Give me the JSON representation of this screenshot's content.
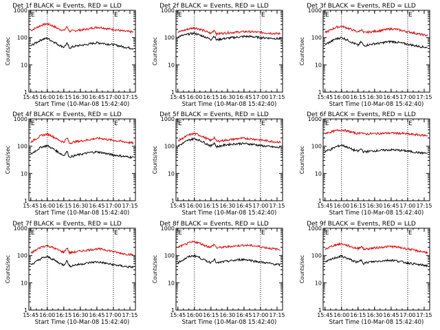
{
  "colors": {
    "events": "#000000",
    "lld": "#e00000",
    "axis": "#000000",
    "background": "#ffffff"
  },
  "common": {
    "ylabel": "Counts/sec",
    "xlabel": "Start Time (10-Mar-08 15:42:40)",
    "x_ticks": [
      "15:45",
      "16:00",
      "16:15",
      "16:30",
      "16:45",
      "17:00",
      "17:15"
    ],
    "y_ticks": [
      "1",
      "10",
      "100",
      "1000"
    ],
    "marker_label": "E",
    "xlim_minutes": [
      -1.7,
      95
    ],
    "ylim": [
      1,
      1000
    ],
    "yscale": "log",
    "vlines_minutes": [
      15,
      75
    ]
  },
  "chart_data": [
    {
      "type": "line",
      "title": "Det 1f BLACK = Events, RED = LLD",
      "x": [
        "15:45",
        "15:50",
        "15:55",
        "16:00",
        "16:03",
        "16:10",
        "16:15",
        "16:18",
        "16:20",
        "16:25",
        "16:30",
        "16:35",
        "16:40",
        "16:45",
        "16:50",
        "16:55",
        "17:00",
        "17:05",
        "17:10",
        "17:15",
        "17:18"
      ],
      "series": [
        {
          "name": "LLD",
          "color": "#e00000",
          "values": [
            180,
            230,
            290,
            320,
            290,
            210,
            180,
            250,
            170,
            180,
            190,
            200,
            220,
            240,
            230,
            210,
            200,
            185,
            170,
            165,
            160
          ]
        },
        {
          "name": "Events",
          "color": "#000000",
          "values": [
            50,
            65,
            85,
            95,
            80,
            55,
            45,
            60,
            42,
            48,
            52,
            55,
            60,
            65,
            62,
            58,
            55,
            50,
            45,
            42,
            40
          ]
        }
      ]
    },
    {
      "type": "line",
      "title": "Det 2f BLACK = Events, RED = LLD",
      "x": [
        "15:45",
        "15:50",
        "15:55",
        "16:00",
        "16:03",
        "16:10",
        "16:15",
        "16:18",
        "16:20",
        "16:25",
        "16:30",
        "16:35",
        "16:40",
        "16:45",
        "16:50",
        "16:55",
        "17:00",
        "17:05",
        "17:10",
        "17:15",
        "17:18"
      ],
      "series": [
        {
          "name": "LLD",
          "color": "#e00000",
          "values": [
            160,
            180,
            210,
            230,
            215,
            170,
            140,
            190,
            135,
            145,
            150,
            155,
            160,
            165,
            165,
            160,
            155,
            150,
            145,
            140,
            140
          ]
        },
        {
          "name": "Events",
          "color": "#000000",
          "values": [
            110,
            120,
            135,
            145,
            130,
            105,
            85,
            115,
            82,
            90,
            95,
            100,
            105,
            110,
            110,
            105,
            100,
            98,
            95,
            92,
            90
          ]
        }
      ]
    },
    {
      "type": "line",
      "title": "Det 3f BLACK = Events, RED = LLD",
      "x": [
        "15:45",
        "15:50",
        "15:55",
        "16:00",
        "16:03",
        "16:10",
        "16:15",
        "16:18",
        "16:20",
        "16:25",
        "16:30",
        "16:35",
        "16:40",
        "16:45",
        "16:50",
        "16:55",
        "17:00",
        "17:05",
        "17:10",
        "17:15",
        "17:18"
      ],
      "series": [
        {
          "name": "LLD",
          "color": "#e00000",
          "values": [
            150,
            190,
            240,
            260,
            240,
            190,
            160,
            200,
            150,
            160,
            170,
            180,
            195,
            210,
            200,
            180,
            165,
            150,
            135,
            125,
            120
          ]
        },
        {
          "name": "Events",
          "color": "#000000",
          "values": [
            55,
            70,
            90,
            100,
            90,
            65,
            52,
            70,
            50,
            55,
            60,
            62,
            68,
            72,
            68,
            62,
            58,
            52,
            48,
            45,
            43
          ]
        }
      ]
    },
    {
      "type": "line",
      "title": "Det 4f BLACK = Events, RED = LLD",
      "x": [
        "15:45",
        "15:50",
        "15:55",
        "16:00",
        "16:03",
        "16:10",
        "16:15",
        "16:18",
        "16:20",
        "16:25",
        "16:30",
        "16:35",
        "16:40",
        "16:45",
        "16:50",
        "16:55",
        "17:00",
        "17:05",
        "17:10",
        "17:15",
        "17:18"
      ],
      "series": [
        {
          "name": "LLD",
          "color": "#e00000",
          "values": [
            140,
            190,
            250,
            280,
            250,
            170,
            140,
            200,
            130,
            145,
            155,
            165,
            180,
            195,
            190,
            175,
            165,
            155,
            145,
            135,
            130
          ]
        },
        {
          "name": "Events",
          "color": "#000000",
          "values": [
            50,
            70,
            95,
            105,
            90,
            60,
            45,
            65,
            40,
            45,
            50,
            55,
            60,
            62,
            58,
            52,
            48,
            45,
            42,
            40,
            40
          ]
        }
      ]
    },
    {
      "type": "line",
      "title": "Det 5f BLACK = Events, RED = LLD",
      "x": [
        "15:45",
        "15:50",
        "15:55",
        "16:00",
        "16:03",
        "16:10",
        "16:15",
        "16:18",
        "16:20",
        "16:25",
        "16:30",
        "16:35",
        "16:40",
        "16:45",
        "16:50",
        "16:55",
        "17:00",
        "17:05",
        "17:10",
        "17:15",
        "17:18"
      ],
      "series": [
        {
          "name": "LLD",
          "color": "#e00000",
          "values": [
            160,
            200,
            260,
            290,
            270,
            200,
            160,
            210,
            150,
            160,
            170,
            180,
            190,
            195,
            190,
            180,
            170,
            160,
            150,
            145,
            140
          ]
        },
        {
          "name": "Events",
          "color": "#000000",
          "values": [
            100,
            130,
            170,
            190,
            175,
            130,
            100,
            135,
            95,
            105,
            115,
            120,
            125,
            125,
            120,
            115,
            105,
            100,
            95,
            90,
            90
          ]
        }
      ]
    },
    {
      "type": "line",
      "title": "Det 6f BLACK = Events, RED = LLD",
      "x": [
        "15:45",
        "15:50",
        "15:55",
        "16:00",
        "16:03",
        "16:10",
        "16:15",
        "16:18",
        "16:20",
        "16:25",
        "16:30",
        "16:35",
        "16:40",
        "16:45",
        "16:50",
        "16:55",
        "17:00",
        "17:05",
        "17:10",
        "17:15",
        "17:18"
      ],
      "series": [
        {
          "name": "LLD",
          "color": "#e00000",
          "values": [
            300,
            330,
            370,
            400,
            380,
            320,
            290,
            330,
            280,
            285,
            290,
            295,
            300,
            305,
            300,
            295,
            280,
            270,
            260,
            250,
            245
          ]
        },
        {
          "name": "Events",
          "color": "#000000",
          "values": [
            65,
            75,
            95,
            110,
            100,
            75,
            65,
            80,
            62,
            65,
            68,
            70,
            72,
            74,
            72,
            70,
            66,
            62,
            58,
            56,
            55
          ]
        }
      ]
    },
    {
      "type": "line",
      "title": "Det 7f BLACK = Events, RED = LLD",
      "x": [
        "15:45",
        "15:50",
        "15:55",
        "16:00",
        "16:03",
        "16:10",
        "16:15",
        "16:18",
        "16:20",
        "16:25",
        "16:30",
        "16:35",
        "16:40",
        "16:45",
        "16:50",
        "16:55",
        "17:00",
        "17:05",
        "17:10",
        "17:15",
        "17:18"
      ],
      "series": [
        {
          "name": "LLD",
          "color": "#e00000",
          "values": [
            120,
            160,
            210,
            230,
            210,
            160,
            130,
            190,
            125,
            135,
            145,
            155,
            165,
            175,
            170,
            155,
            140,
            125,
            115,
            110,
            105
          ]
        },
        {
          "name": "Events",
          "color": "#000000",
          "values": [
            45,
            60,
            80,
            90,
            80,
            55,
            45,
            65,
            40,
            45,
            48,
            52,
            56,
            58,
            55,
            50,
            46,
            43,
            40,
            38,
            38
          ]
        }
      ]
    },
    {
      "type": "line",
      "title": "Det 8f BLACK = Events, RED = LLD",
      "x": [
        "15:45",
        "15:50",
        "15:55",
        "16:00",
        "16:03",
        "16:10",
        "16:15",
        "16:18",
        "16:20",
        "16:25",
        "16:30",
        "16:35",
        "16:40",
        "16:45",
        "16:50",
        "16:55",
        "17:00",
        "17:05",
        "17:10",
        "17:15",
        "17:18"
      ],
      "series": [
        {
          "name": "LLD",
          "color": "#e00000",
          "values": [
            200,
            240,
            290,
            320,
            300,
            230,
            200,
            260,
            190,
            200,
            210,
            220,
            230,
            240,
            235,
            225,
            210,
            195,
            180,
            170,
            165
          ]
        },
        {
          "name": "Events",
          "color": "#000000",
          "values": [
            55,
            70,
            90,
            100,
            90,
            65,
            55,
            75,
            52,
            58,
            62,
            65,
            70,
            72,
            68,
            62,
            58,
            54,
            50,
            47,
            45
          ]
        }
      ]
    },
    {
      "type": "line",
      "title": "Det 9f BLACK = Events, RED = LLD",
      "x": [
        "15:45",
        "15:50",
        "15:55",
        "16:00",
        "16:03",
        "16:10",
        "16:15",
        "16:18",
        "16:20",
        "16:25",
        "16:30",
        "16:35",
        "16:40",
        "16:45",
        "16:50",
        "16:55",
        "17:00",
        "17:05",
        "17:10",
        "17:15",
        "17:18"
      ],
      "series": [
        {
          "name": "LLD",
          "color": "#e00000",
          "values": [
            170,
            210,
            250,
            270,
            250,
            200,
            180,
            220,
            170,
            180,
            190,
            200,
            210,
            215,
            205,
            190,
            175,
            160,
            145,
            135,
            130
          ]
        },
        {
          "name": "Events",
          "color": "#000000",
          "values": [
            55,
            70,
            85,
            95,
            85,
            65,
            55,
            70,
            52,
            57,
            60,
            63,
            66,
            68,
            64,
            58,
            54,
            50,
            46,
            44,
            42
          ]
        }
      ]
    }
  ]
}
